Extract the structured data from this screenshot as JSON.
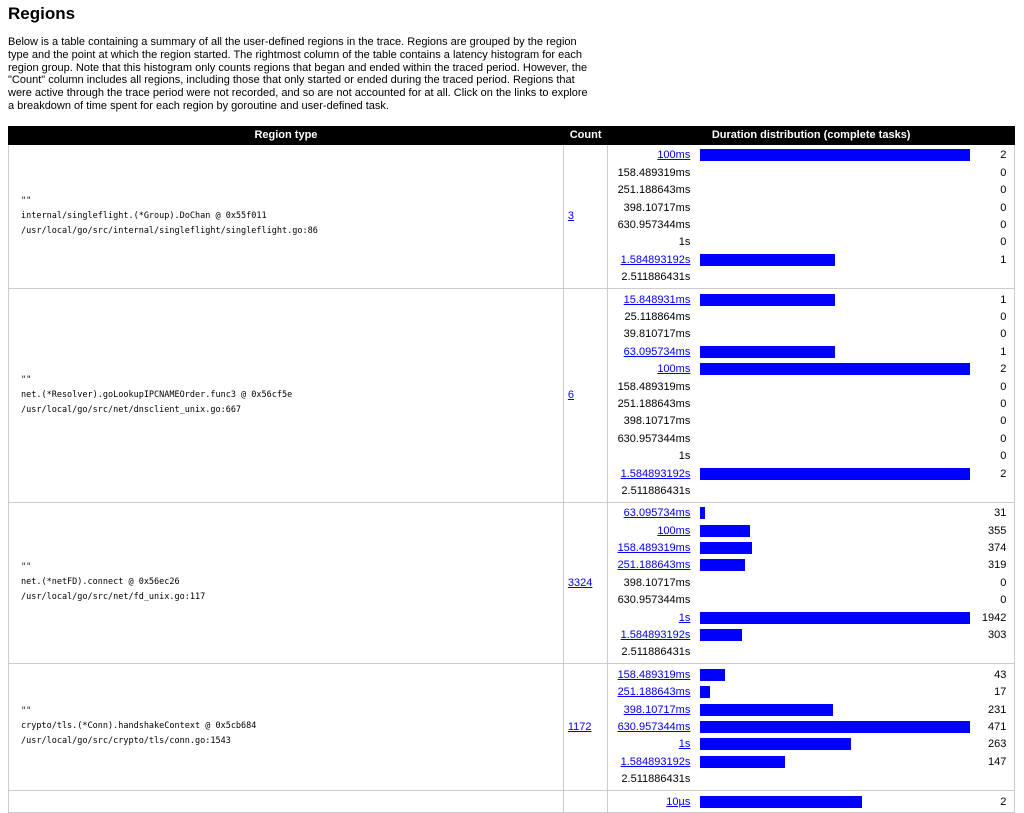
{
  "title": "Regions",
  "intro": "Below is a table containing a summary of all the user-defined regions in the trace. Regions are grouped by the region type and the point at which the region started. The rightmost column of the table contains a latency histogram for each region group. Note that this histogram only counts regions that began and ended within the traced period. However, the \"Count\" column includes all regions, including those that only started or ended during the traced period. Regions that were active through the trace period were not recorded, and so are not accounted for at all. Click on the links to explore a breakdown of time spent for each region by goroutine and user-defined task.",
  "headers": {
    "region_type": "Region type",
    "count": "Count",
    "distribution": "Duration distribution (complete tasks)"
  },
  "bar_color": "#0000ff",
  "rows": [
    {
      "name": "\"\"",
      "func": "internal/singleflight.(*Group).DoChan @ 0x55f011",
      "file": "/usr/local/go/src/internal/singleflight/singleflight.go:86",
      "count": "3",
      "hist": [
        [
          "100ms",
          2
        ],
        [
          "158.489319ms",
          0
        ],
        [
          "251.188643ms",
          0
        ],
        [
          "398.10717ms",
          0
        ],
        [
          "630.957344ms",
          0
        ],
        [
          "1s",
          0
        ],
        [
          "1.584893192s",
          1
        ],
        [
          "2.511886431s",
          null
        ]
      ]
    },
    {
      "name": "\"\"",
      "func": "net.(*Resolver).goLookupIPCNAMEOrder.func3 @ 0x56cf5e",
      "file": "/usr/local/go/src/net/dnsclient_unix.go:667",
      "count": "6",
      "hist": [
        [
          "15.848931ms",
          1
        ],
        [
          "25.118864ms",
          0
        ],
        [
          "39.810717ms",
          0
        ],
        [
          "63.095734ms",
          1
        ],
        [
          "100ms",
          2
        ],
        [
          "158.489319ms",
          0
        ],
        [
          "251.188643ms",
          0
        ],
        [
          "398.10717ms",
          0
        ],
        [
          "630.957344ms",
          0
        ],
        [
          "1s",
          0
        ],
        [
          "1.584893192s",
          2
        ],
        [
          "2.511886431s",
          null
        ]
      ]
    },
    {
      "name": "\"\"",
      "func": "net.(*netFD).connect @ 0x56ec26",
      "file": "/usr/local/go/src/net/fd_unix.go:117",
      "count": "3324",
      "hist": [
        [
          "63.095734ms",
          31
        ],
        [
          "100ms",
          355
        ],
        [
          "158.489319ms",
          374
        ],
        [
          "251.188643ms",
          319
        ],
        [
          "398.10717ms",
          0
        ],
        [
          "630.957344ms",
          0
        ],
        [
          "1s",
          1942
        ],
        [
          "1.584893192s",
          303
        ],
        [
          "2.511886431s",
          null
        ]
      ]
    },
    {
      "name": "\"\"",
      "func": "crypto/tls.(*Conn).handshakeContext @ 0x5cb684",
      "file": "/usr/local/go/src/crypto/tls/conn.go:1543",
      "count": "1172",
      "hist": [
        [
          "158.489319ms",
          43
        ],
        [
          "251.188643ms",
          17
        ],
        [
          "398.10717ms",
          231
        ],
        [
          "630.957344ms",
          471
        ],
        [
          "1s",
          263
        ],
        [
          "1.584893192s",
          147
        ],
        [
          "2.511886431s",
          null
        ]
      ]
    },
    {
      "name": "",
      "func": "",
      "file": "",
      "count": "",
      "hist": [
        [
          "10µs",
          2
        ]
      ],
      "partial_max": 3.35
    }
  ]
}
